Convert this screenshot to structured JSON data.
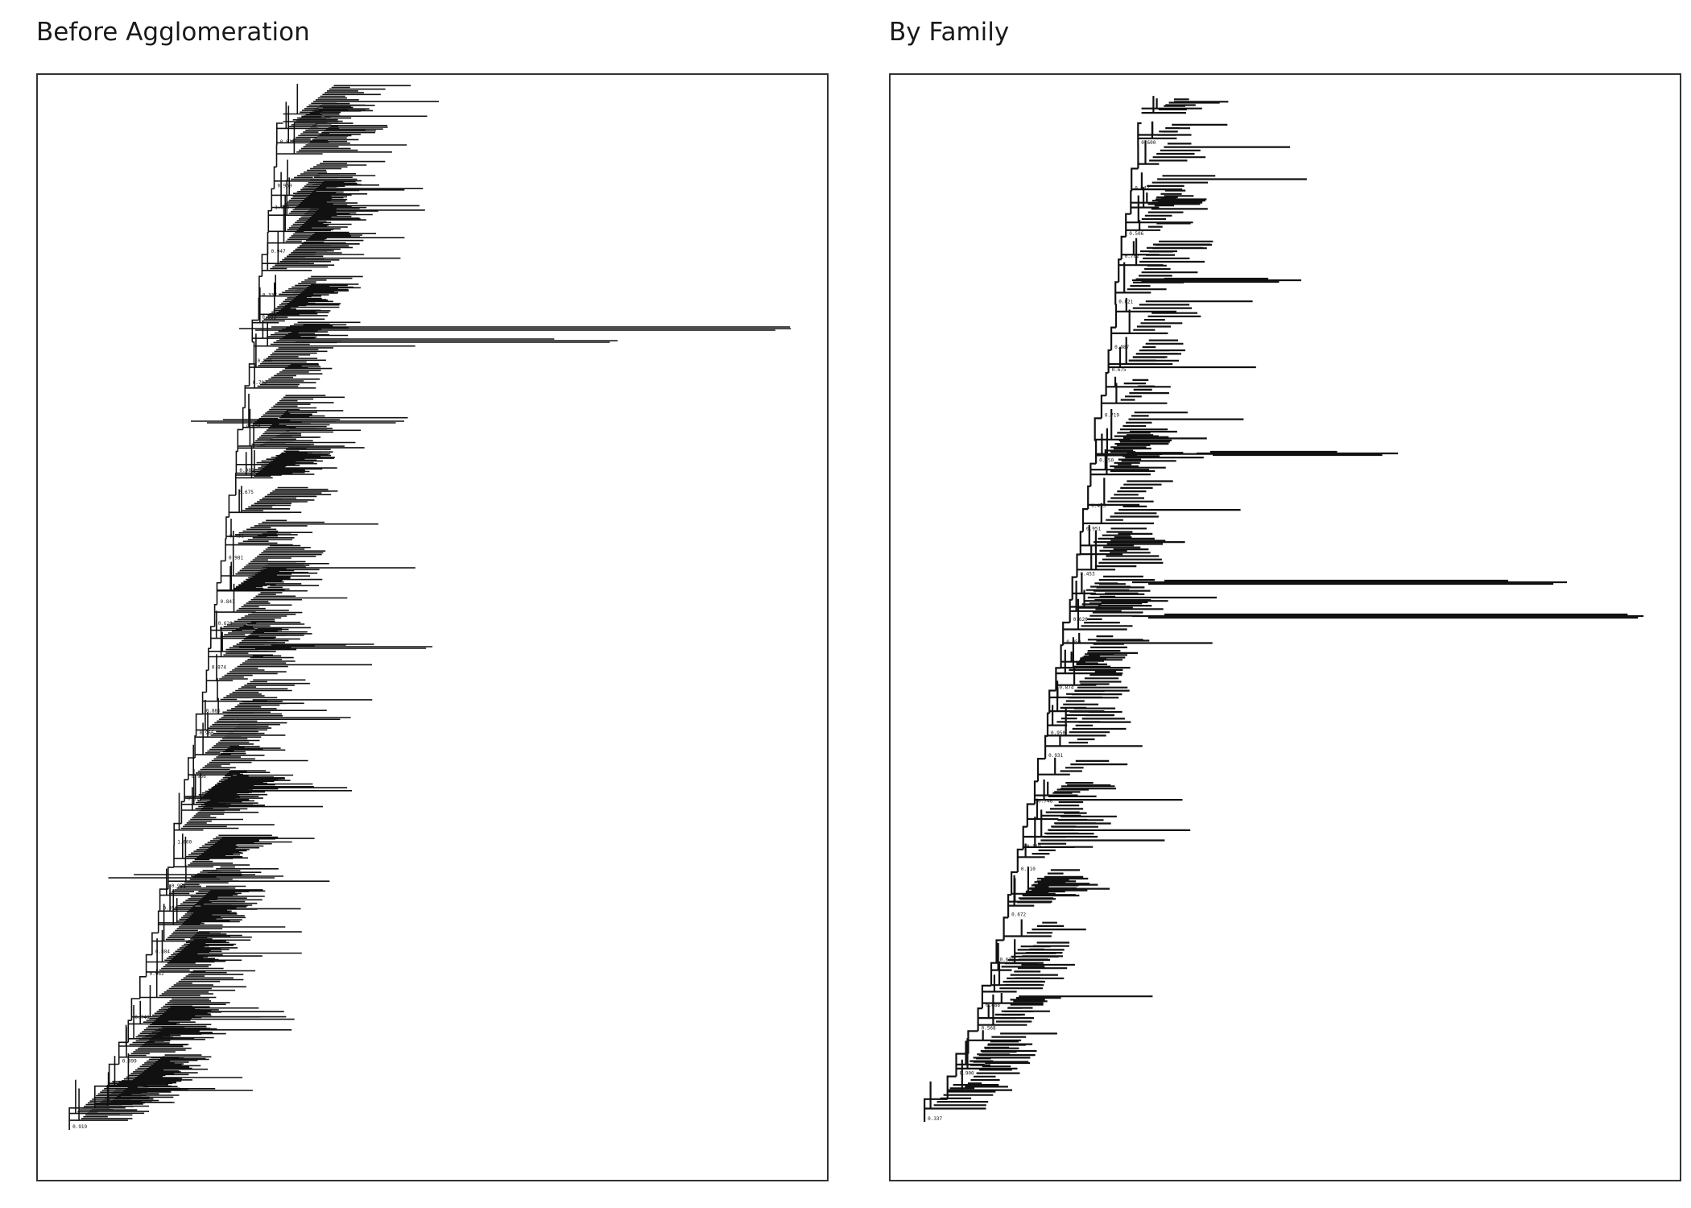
{
  "panels": [
    {
      "id": "left",
      "title": "Before Agglomeration",
      "support_labels": [
        "0.919",
        "0.981",
        "0.999",
        "0.748",
        "0.962",
        "0.884",
        "0.356",
        "0.958",
        "1.000",
        "0.119",
        "0.956",
        "0.966",
        "0.886",
        "0.874",
        "0.620",
        "0.841",
        "0.981",
        "0.451",
        "0.675",
        "0.988",
        "0.958",
        "0.702",
        "0.880",
        "0.933",
        "0.337",
        "0.947",
        "1.000",
        "0.969",
        "0.812"
      ]
    },
    {
      "id": "right",
      "title": "By Family",
      "support_labels": [
        "0.337",
        "0.900",
        "0.568",
        "0.888",
        "0.676",
        "0.672",
        "0.710",
        "0.119",
        "0.748",
        "0.931",
        "0.950",
        "0.874",
        "0.959",
        "0.620",
        "0.453",
        "0.951",
        "0.453",
        "0.650",
        "0.719",
        "0.675",
        "0.987",
        "0.821",
        "0.702",
        "0.506",
        "0.942",
        "0.600"
      ]
    }
  ]
}
